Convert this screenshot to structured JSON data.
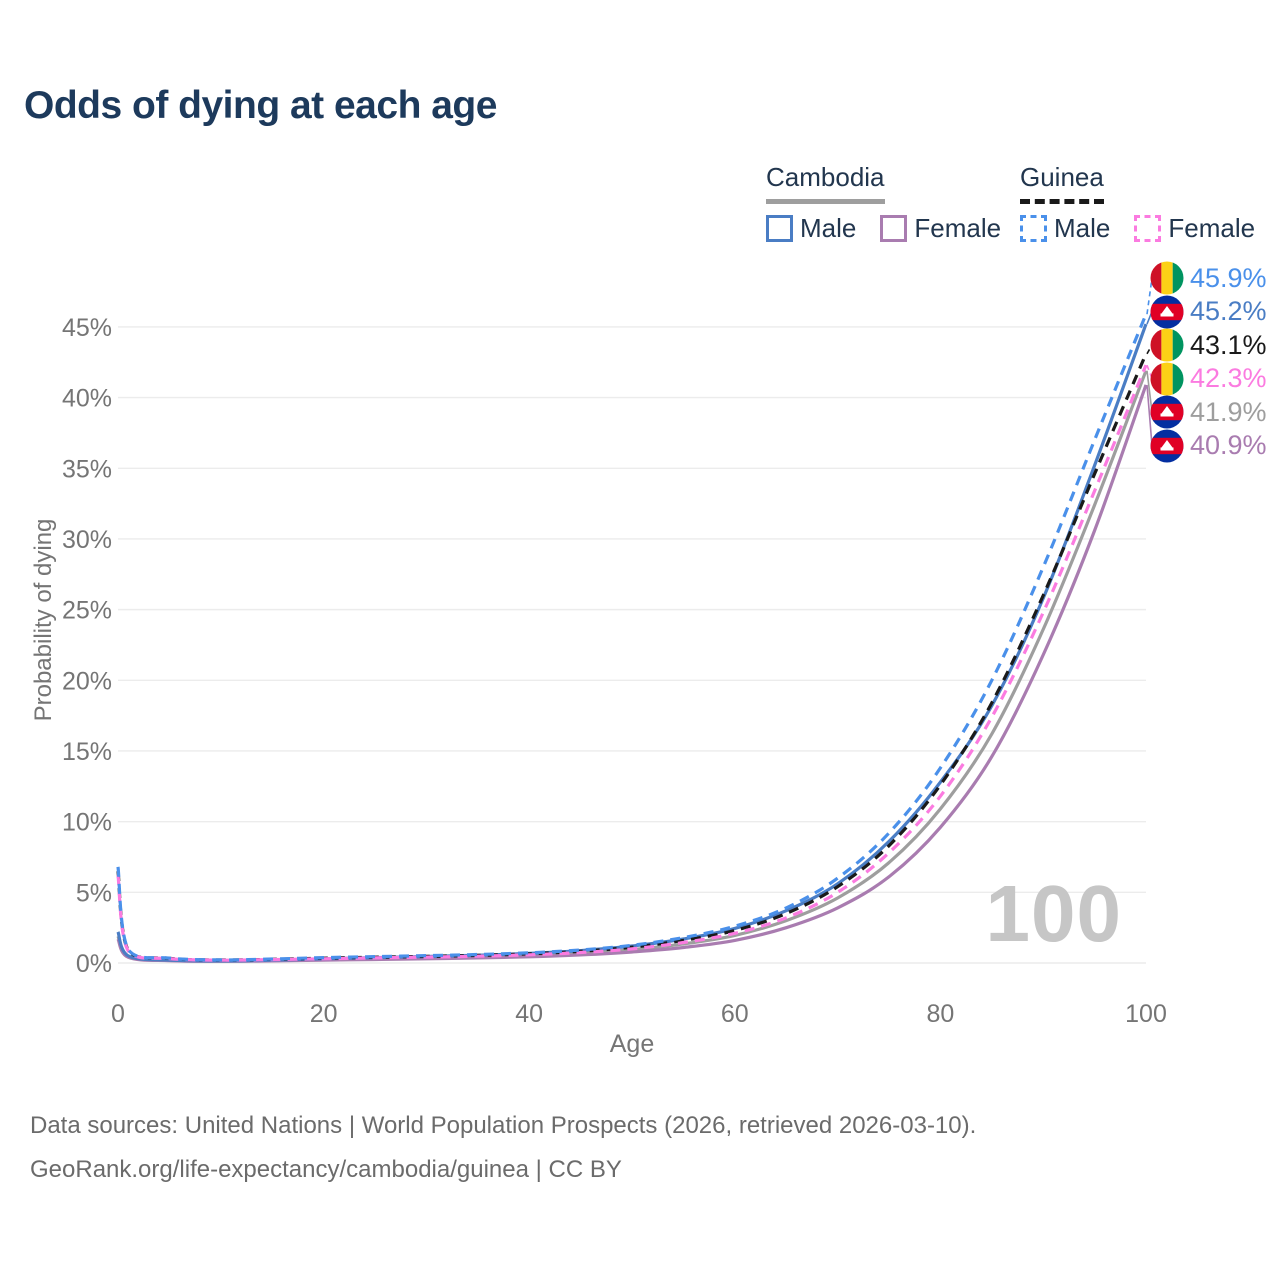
{
  "header": {
    "title": "Odds of dying at each age"
  },
  "legend": {
    "groups": [
      {
        "name": "Cambodia",
        "series": "cambodia_all",
        "items": [
          {
            "label": "Male",
            "series": "cambodia_male"
          },
          {
            "label": "Female",
            "series": "cambodia_female"
          }
        ]
      },
      {
        "name": "Guinea",
        "series": "guinea_all",
        "items": [
          {
            "label": "Male",
            "series": "guinea_male"
          },
          {
            "label": "Female",
            "series": "guinea_female"
          }
        ]
      }
    ]
  },
  "watermark": "100",
  "footer": {
    "line1": "Data sources: United Nations | World Population Prospects (2026, retrieved 2026-03-10).",
    "line2": "GeoRank.org/life-expectancy/cambodia/guinea | CC BY"
  },
  "chart_data": {
    "type": "line",
    "title": "Odds of dying at each age",
    "xlabel": "Age",
    "ylabel": "Probability of dying",
    "xlim": [
      0,
      100
    ],
    "ylim": [
      0,
      47
    ],
    "x_ticks": [
      0,
      20,
      40,
      60,
      80,
      100
    ],
    "y_ticks": [
      0,
      5,
      10,
      15,
      20,
      25,
      30,
      35,
      40,
      45
    ],
    "grid": "horizontal-only",
    "legend_position": "top-right",
    "y_tick_suffix": "%",
    "gridline_color": "#ececec",
    "tick_color": "#757575",
    "ages": [
      0,
      1,
      5,
      10,
      15,
      20,
      25,
      30,
      35,
      40,
      45,
      50,
      55,
      60,
      65,
      70,
      75,
      80,
      85,
      90,
      95,
      100
    ],
    "series": [
      {
        "key": "cambodia_all",
        "country": "Cambodia",
        "sex": "Both",
        "style": "solid",
        "color": "#9e9e9e",
        "flag": "cambodia",
        "end_label": "41.9%",
        "values": [
          1.9,
          0.45,
          0.18,
          0.13,
          0.17,
          0.25,
          0.31,
          0.37,
          0.44,
          0.54,
          0.7,
          0.95,
          1.35,
          1.95,
          3.0,
          4.6,
          7.1,
          10.9,
          16.2,
          23.6,
          32.4,
          41.9
        ]
      },
      {
        "key": "cambodia_female",
        "country": "Cambodia",
        "sex": "Female",
        "style": "solid",
        "color": "#a97cb0",
        "flag": "cambodia",
        "end_label": "40.9%",
        "values": [
          1.7,
          0.4,
          0.16,
          0.12,
          0.15,
          0.2,
          0.25,
          0.3,
          0.36,
          0.44,
          0.57,
          0.78,
          1.1,
          1.6,
          2.5,
          3.9,
          6.1,
          9.6,
          14.6,
          21.8,
          30.6,
          40.9
        ]
      },
      {
        "key": "cambodia_male",
        "country": "Cambodia",
        "sex": "Male",
        "style": "solid",
        "color": "#4a7dc4",
        "flag": "cambodia",
        "end_label": "45.2%",
        "values": [
          2.2,
          0.5,
          0.2,
          0.15,
          0.2,
          0.3,
          0.38,
          0.46,
          0.55,
          0.68,
          0.88,
          1.2,
          1.7,
          2.45,
          3.7,
          5.6,
          8.6,
          12.8,
          18.2,
          25.8,
          35.2,
          45.2
        ]
      },
      {
        "key": "guinea_all",
        "country": "Guinea",
        "sex": "Both",
        "style": "dashed",
        "color": "#1a1a1a",
        "flag": "guinea",
        "end_label": "43.1%",
        "values": [
          6.5,
          0.9,
          0.33,
          0.21,
          0.26,
          0.34,
          0.41,
          0.47,
          0.54,
          0.65,
          0.83,
          1.12,
          1.6,
          2.3,
          3.5,
          5.4,
          8.3,
          12.6,
          18.4,
          26.0,
          34.6,
          43.1
        ]
      },
      {
        "key": "guinea_female",
        "country": "Guinea",
        "sex": "Female",
        "style": "dashed",
        "color": "#fb7be0",
        "flag": "guinea",
        "end_label": "42.3%",
        "values": [
          6.2,
          0.85,
          0.31,
          0.2,
          0.24,
          0.3,
          0.36,
          0.42,
          0.48,
          0.58,
          0.74,
          1.0,
          1.45,
          2.1,
          3.2,
          5.0,
          7.8,
          11.8,
          17.4,
          24.8,
          33.4,
          42.3
        ]
      },
      {
        "key": "guinea_male",
        "country": "Guinea",
        "sex": "Male",
        "style": "dashed",
        "color": "#4a90ea",
        "flag": "guinea",
        "end_label": "45.9%",
        "values": [
          6.8,
          0.95,
          0.35,
          0.22,
          0.28,
          0.38,
          0.45,
          0.52,
          0.6,
          0.72,
          0.92,
          1.25,
          1.8,
          2.6,
          3.9,
          6.0,
          9.2,
          13.8,
          20.0,
          28.0,
          37.0,
          45.9
        ]
      }
    ]
  }
}
